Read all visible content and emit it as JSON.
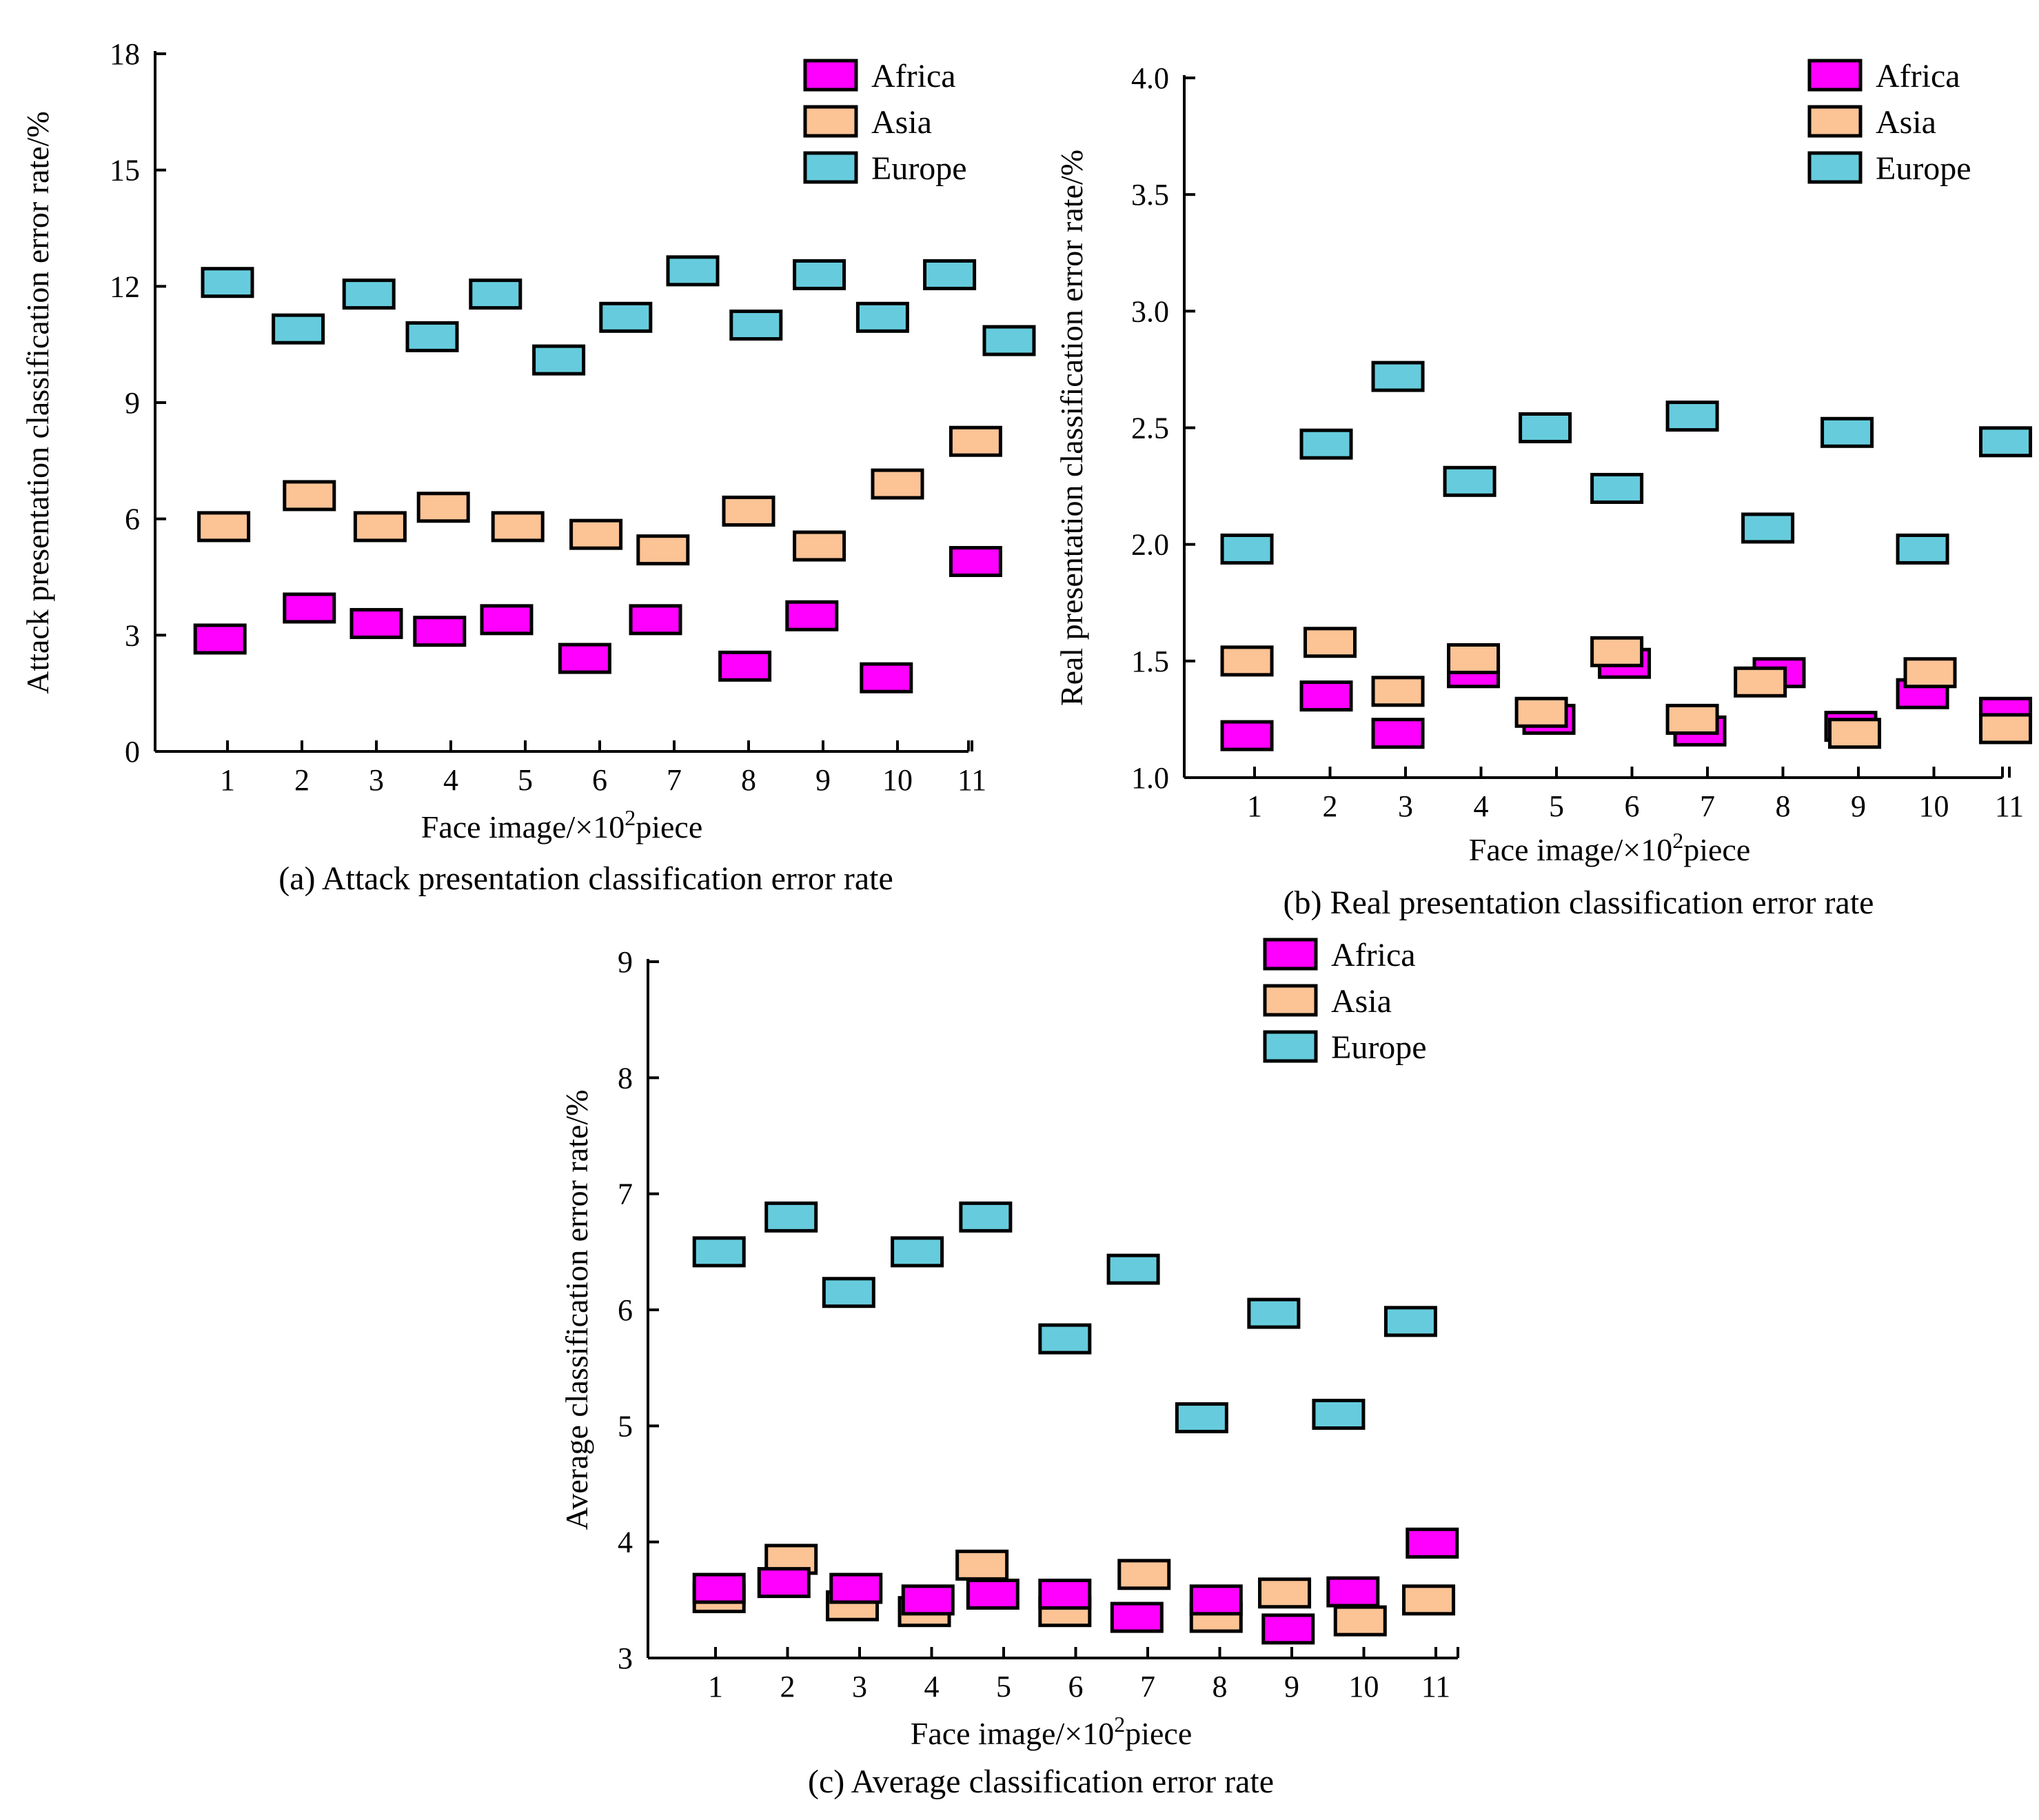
{
  "chart_data": [
    {
      "id": "a",
      "type": "scatter",
      "caption": "(a) Attack presentation classification error rate",
      "xlabel": "Face image/×10²piece",
      "ylabel": "Attack presentation classification error rate/%",
      "ylim": [
        0,
        18
      ],
      "yticks": [
        0,
        3,
        6,
        9,
        12,
        15,
        18
      ],
      "ytick_labels": [
        "0",
        "3",
        "6",
        "9",
        "12",
        "15",
        "18"
      ],
      "categories": [
        "1",
        "2",
        "3",
        "4",
        "5",
        "6",
        "7",
        "8",
        "9",
        "10",
        "11"
      ],
      "legend_position": "top-right",
      "series": [
        {
          "name": "Africa",
          "color": "#ff00ff",
          "x": [
            0.9,
            2.1,
            3.0,
            3.85,
            4.75,
            5.8,
            6.75,
            7.95,
            8.85,
            9.85,
            11.05
          ],
          "values": [
            2.9,
            3.7,
            3.3,
            3.1,
            3.4,
            2.4,
            3.4,
            2.2,
            3.5,
            1.9,
            4.9
          ]
        },
        {
          "name": "Asia",
          "color": "#fcc395",
          "x": [
            0.95,
            2.1,
            3.05,
            3.9,
            4.9,
            5.95,
            6.85,
            8.0,
            8.95,
            10.0,
            11.05
          ],
          "values": [
            5.8,
            6.6,
            5.8,
            6.3,
            5.8,
            5.6,
            5.2,
            6.2,
            5.3,
            6.9,
            8.0
          ]
        },
        {
          "name": "Europe",
          "color": "#66ccdd",
          "x": [
            1.0,
            1.95,
            2.9,
            3.75,
            4.6,
            5.45,
            6.35,
            7.25,
            8.1,
            8.95,
            9.8,
            10.7,
            11.5
          ],
          "values": [
            12.1,
            10.9,
            11.8,
            10.7,
            11.8,
            10.1,
            11.2,
            12.4,
            11.0,
            12.3,
            11.2,
            12.3,
            10.6
          ]
        }
      ]
    },
    {
      "id": "b",
      "type": "scatter",
      "caption": "(b) Real presentation classification error rate",
      "xlabel": "Face image/×10²piece",
      "ylabel": "Real presentation classification error rate/%",
      "ylim": [
        1.0,
        4.0
      ],
      "yticks": [
        1.0,
        1.5,
        2.0,
        2.5,
        3.0,
        3.5,
        4.0
      ],
      "ytick_labels": [
        "1.0",
        "1.5",
        "2.0",
        "2.5",
        "3.0",
        "3.5",
        "4.0"
      ],
      "categories": [
        "1",
        "2",
        "3",
        "4",
        "5",
        "6",
        "7",
        "8",
        "9",
        "10",
        "11"
      ],
      "legend_position": "top-right",
      "series": [
        {
          "name": "Africa",
          "color": "#ff00ff",
          "x": [
            0.9,
            1.95,
            2.9,
            3.9,
            4.9,
            5.9,
            6.9,
            7.95,
            8.9,
            9.85,
            10.95
          ],
          "values": [
            1.18,
            1.35,
            1.19,
            1.45,
            1.25,
            1.49,
            1.2,
            1.45,
            1.22,
            1.36,
            1.28
          ]
        },
        {
          "name": "Asia",
          "color": "#fcc395",
          "x": [
            0.9,
            2.0,
            2.9,
            3.9,
            4.8,
            5.8,
            6.8,
            7.7,
            8.95,
            9.95,
            10.95
          ],
          "values": [
            1.5,
            1.58,
            1.37,
            1.51,
            1.28,
            1.54,
            1.25,
            1.41,
            1.19,
            1.45,
            1.21
          ]
        },
        {
          "name": "Europe",
          "color": "#66ccdd",
          "x": [
            0.9,
            1.95,
            2.9,
            3.85,
            4.85,
            5.8,
            6.8,
            7.8,
            8.85,
            9.85,
            10.95
          ],
          "values": [
            1.98,
            2.43,
            2.72,
            2.27,
            2.5,
            2.24,
            2.55,
            2.07,
            2.48,
            1.98,
            2.44
          ]
        }
      ]
    },
    {
      "id": "c",
      "type": "scatter",
      "caption": "(c) Average classification error rate",
      "xlabel": "Face image/×10²piece",
      "ylabel": "Average classification error rate/%",
      "ylim": [
        3,
        9
      ],
      "yticks": [
        3,
        4,
        5,
        6,
        7,
        8,
        9
      ],
      "ytick_labels": [
        "3",
        "4",
        "5",
        "6",
        "7",
        "8",
        "9"
      ],
      "categories": [
        "1",
        "2",
        "3",
        "4",
        "5",
        "6",
        "7",
        "8",
        "9",
        "10",
        "11"
      ],
      "legend_position": "top-right",
      "series": [
        {
          "name": "Asia",
          "color": "#fcc395",
          "x": [
            1.05,
            2.05,
            2.9,
            3.9,
            4.7,
            5.85,
            6.95,
            7.95,
            8.9,
            9.95,
            10.9
          ],
          "values": [
            3.52,
            3.85,
            3.45,
            3.4,
            3.8,
            3.4,
            3.72,
            3.35,
            3.56,
            3.32,
            3.5
          ]
        },
        {
          "name": "Africa",
          "color": "#ff00ff",
          "x": [
            1.05,
            1.95,
            2.95,
            3.95,
            4.85,
            5.85,
            6.85,
            7.95,
            8.95,
            9.85,
            10.95
          ],
          "values": [
            3.6,
            3.65,
            3.6,
            3.5,
            3.55,
            3.55,
            3.35,
            3.5,
            3.25,
            3.57,
            3.99
          ]
        },
        {
          "name": "Europe",
          "color": "#66ccdd",
          "x": [
            1.05,
            2.05,
            2.85,
            3.8,
            4.75,
            5.85,
            6.8,
            7.75,
            8.75,
            9.65,
            10.65
          ],
          "values": [
            6.5,
            6.8,
            6.15,
            6.5,
            6.8,
            5.75,
            6.35,
            5.07,
            5.97,
            5.1,
            5.9
          ]
        }
      ]
    }
  ]
}
